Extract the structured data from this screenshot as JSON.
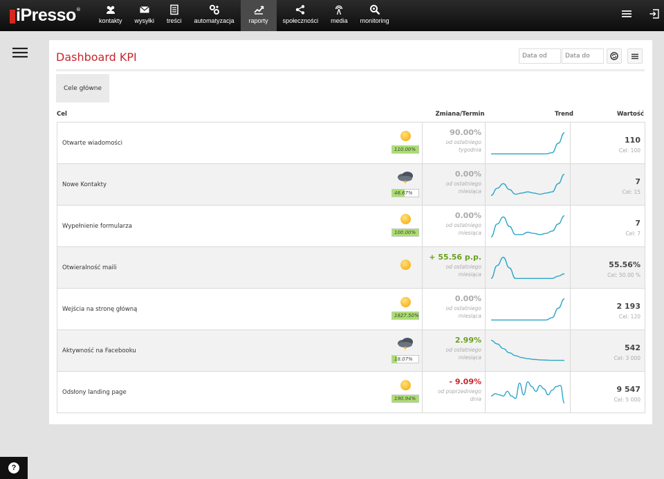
{
  "app": {
    "logo_text": "iPresso",
    "logo_mark": "®"
  },
  "nav": {
    "items": [
      {
        "label": "kontakty",
        "icon": "users-icon"
      },
      {
        "label": "wysyłki",
        "icon": "envelope-icon"
      },
      {
        "label": "treści",
        "icon": "document-icon"
      },
      {
        "label": "automatyzacja",
        "icon": "gears-icon"
      },
      {
        "label": "raporty",
        "icon": "chart-icon",
        "active": true
      },
      {
        "label": "społeczności",
        "icon": "share-icon"
      },
      {
        "label": "media",
        "icon": "antenna-icon"
      },
      {
        "label": "monitoring",
        "icon": "magnifier-icon"
      }
    ]
  },
  "page": {
    "title": "Dashboard KPI",
    "date_from_placeholder": "Data od",
    "date_to_placeholder": "Data do",
    "tab_label": "Cele główne"
  },
  "table": {
    "headers": {
      "cel": "Cel",
      "zmiana": "Zmiana/Termin",
      "trend": "Trend",
      "wartosc": "Wartość"
    },
    "rows": [
      {
        "name": "Otwarte wiadomości",
        "weather": "sun",
        "badge": "110.00%",
        "progress": 1.0,
        "change": "90.00%",
        "change_style": "neutral",
        "note_line1": "od ostatniego",
        "note_line2": "tygodnia",
        "value": "110",
        "goal": "Cel: 100",
        "trend": [
          0.05,
          0.05,
          0.05,
          0.05,
          0.05,
          0.05,
          0.05,
          0.05,
          0.05,
          0.05,
          0.1,
          0.5,
          0.95
        ]
      },
      {
        "name": "Nowe Kontakty",
        "weather": "storm",
        "badge": "46.67%",
        "progress": 0.4667,
        "change": "0.00%",
        "change_style": "neutral",
        "note_line1": "od ostatniego",
        "note_line2": "miesiąca",
        "value": "7",
        "goal": "Cel: 15",
        "trend": [
          0.05,
          0.35,
          0.55,
          0.3,
          0.1,
          0.15,
          0.2,
          0.15,
          0.1,
          0.15,
          0.2,
          0.55,
          0.95
        ]
      },
      {
        "name": "Wypełnienie formularza",
        "weather": "sun",
        "badge": "100.00%",
        "progress": 1.0,
        "change": "0.00%",
        "change_style": "neutral",
        "note_line1": "od ostatniego",
        "note_line2": "miesiąca",
        "value": "7",
        "goal": "Cel: 7",
        "trend": [
          0.05,
          0.6,
          0.9,
          0.5,
          0.15,
          0.15,
          0.25,
          0.2,
          0.15,
          0.2,
          0.3,
          0.6,
          0.95
        ]
      },
      {
        "name": "Otwieralność maili",
        "weather": "sun-only",
        "badge": "",
        "progress": 0,
        "change": "+ 55.56 p.p.",
        "change_style": "pos",
        "note_line1": "od ostatniego",
        "note_line2": "miesiąca",
        "value": "55.56%",
        "goal": "Cel: 50.00 %",
        "trend": [
          0.05,
          0.6,
          0.95,
          0.5,
          0.05,
          0.05,
          0.05,
          0.05,
          0.05,
          0.05,
          0.05,
          0.15,
          0.25
        ]
      },
      {
        "name": "Wejścia na stronę główną",
        "weather": "sun",
        "badge": "1827.50%",
        "progress": 1.0,
        "change": "0.00%",
        "change_style": "neutral",
        "note_line1": "od ostatniego",
        "note_line2": "miesiąca",
        "value": "2 193",
        "goal": "Cel: 120",
        "trend": [
          0.05,
          0.05,
          0.05,
          0.05,
          0.05,
          0.05,
          0.05,
          0.05,
          0.05,
          0.05,
          0.15,
          0.55,
          0.95
        ]
      },
      {
        "name": "Aktywność na Facebooku",
        "weather": "storm",
        "badge": "18.07%",
        "progress": 0.1807,
        "change": "2.99%",
        "change_style": "pos",
        "note_line1": "od ostatniego",
        "note_line2": "miesiąca",
        "value": "542",
        "goal": "Cel: 3 000",
        "trend": [
          0.95,
          0.8,
          0.6,
          0.42,
          0.3,
          0.22,
          0.17,
          0.14,
          0.12,
          0.11,
          0.1,
          0.1,
          0.1
        ]
      },
      {
        "name": "Odsłony landing page",
        "weather": "sun",
        "badge": "190.94%",
        "progress": 1.0,
        "change": "- 9.09%",
        "change_style": "neg",
        "note_line1": "od poprzedniego",
        "note_line2": "dnia",
        "value": "9 547",
        "goal": "Cel: 5 000",
        "trend": [
          0.35,
          0.45,
          0.4,
          0.35,
          0.55,
          0.35,
          0.25,
          0.9,
          0.4,
          0.95,
          0.75,
          0.55,
          0.8,
          0.65,
          0.4,
          0.6,
          0.75,
          0.8,
          0.05
        ]
      }
    ]
  },
  "colors": {
    "accent": "#c8252c",
    "positive": "#6aa021",
    "trend_line": "#2aa5c8",
    "badge_fill": "#a9df6b"
  }
}
